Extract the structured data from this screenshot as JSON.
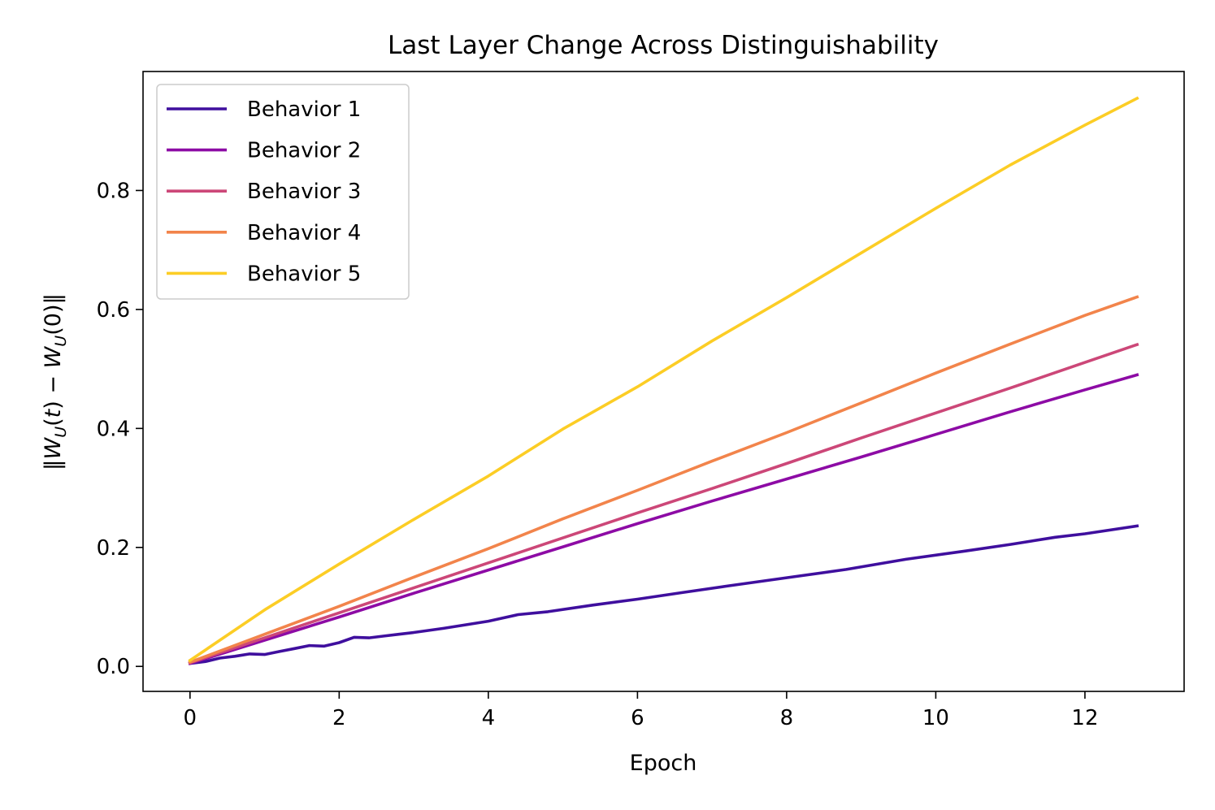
{
  "chart_data": {
    "type": "line",
    "title": "Last Layer Change Across Distinguishability",
    "xlabel": "Epoch",
    "ylabel": "‖W_U(t) − W_U(0)‖",
    "ylabel_parts": {
      "open": "‖",
      "w1": "W",
      "sub1": "U",
      "mid1": "(",
      "t": "t",
      "mid2": ") − ",
      "w2": "W",
      "sub2": "U",
      "end": "(0)‖"
    },
    "xlim": [
      -0.63,
      13.33
    ],
    "ylim": [
      -0.042,
      1.0
    ],
    "xticks": [
      0,
      2,
      4,
      6,
      8,
      10,
      12
    ],
    "xtick_labels": [
      "0",
      "2",
      "4",
      "6",
      "8",
      "10",
      "12"
    ],
    "yticks": [
      0.0,
      0.2,
      0.4,
      0.6,
      0.8
    ],
    "ytick_labels": [
      "0.0",
      "0.2",
      "0.4",
      "0.6",
      "0.8"
    ],
    "grid": false,
    "legend_position": "top-left",
    "series": [
      {
        "name": "Behavior 1",
        "color": "#3f0f9e",
        "x": [
          0,
          0.2,
          0.4,
          0.6,
          0.8,
          1.0,
          1.2,
          1.4,
          1.6,
          1.8,
          2.0,
          2.2,
          2.4,
          2.6,
          2.8,
          3.0,
          3.4,
          4.0,
          4.4,
          4.8,
          5.4,
          6.0,
          6.6,
          7.2,
          8.0,
          8.8,
          9.6,
          10.4,
          11.0,
          11.6,
          12.0,
          12.7
        ],
        "y": [
          0.005,
          0.008,
          0.014,
          0.017,
          0.021,
          0.02,
          0.025,
          0.03,
          0.035,
          0.034,
          0.04,
          0.049,
          0.048,
          0.051,
          0.054,
          0.057,
          0.064,
          0.076,
          0.087,
          0.092,
          0.103,
          0.113,
          0.124,
          0.135,
          0.149,
          0.163,
          0.18,
          0.194,
          0.205,
          0.217,
          0.223,
          0.236
        ]
      },
      {
        "name": "Behavior 2",
        "color": "#8d0ba5",
        "x": [
          0,
          1,
          2,
          3,
          4,
          5,
          6,
          7,
          8,
          9,
          10,
          11,
          12,
          12.7
        ],
        "y": [
          0.005,
          0.044,
          0.083,
          0.123,
          0.162,
          0.201,
          0.24,
          0.278,
          0.315,
          0.352,
          0.39,
          0.428,
          0.465,
          0.49
        ]
      },
      {
        "name": "Behavior 3",
        "color": "#cc4778",
        "x": [
          0,
          1,
          2,
          3,
          4,
          5,
          6,
          7,
          8,
          9,
          10,
          11,
          12,
          12.7
        ],
        "y": [
          0.006,
          0.048,
          0.09,
          0.132,
          0.174,
          0.216,
          0.258,
          0.299,
          0.341,
          0.384,
          0.426,
          0.468,
          0.511,
          0.541
        ]
      },
      {
        "name": "Behavior 4",
        "color": "#f2844b",
        "x": [
          0,
          1,
          2,
          3,
          4,
          5,
          6,
          7,
          8,
          9,
          10,
          11,
          12,
          12.7
        ],
        "y": [
          0.007,
          0.054,
          0.101,
          0.15,
          0.198,
          0.248,
          0.296,
          0.345,
          0.393,
          0.443,
          0.493,
          0.542,
          0.59,
          0.621
        ]
      },
      {
        "name": "Behavior 5",
        "color": "#fccd25",
        "x": [
          0,
          1,
          2,
          3,
          4,
          5,
          6,
          7,
          8,
          9,
          10,
          11,
          12,
          12.7
        ],
        "y": [
          0.01,
          0.095,
          0.172,
          0.247,
          0.32,
          0.399,
          0.47,
          0.547,
          0.62,
          0.695,
          0.77,
          0.843,
          0.91,
          0.955
        ]
      }
    ]
  }
}
